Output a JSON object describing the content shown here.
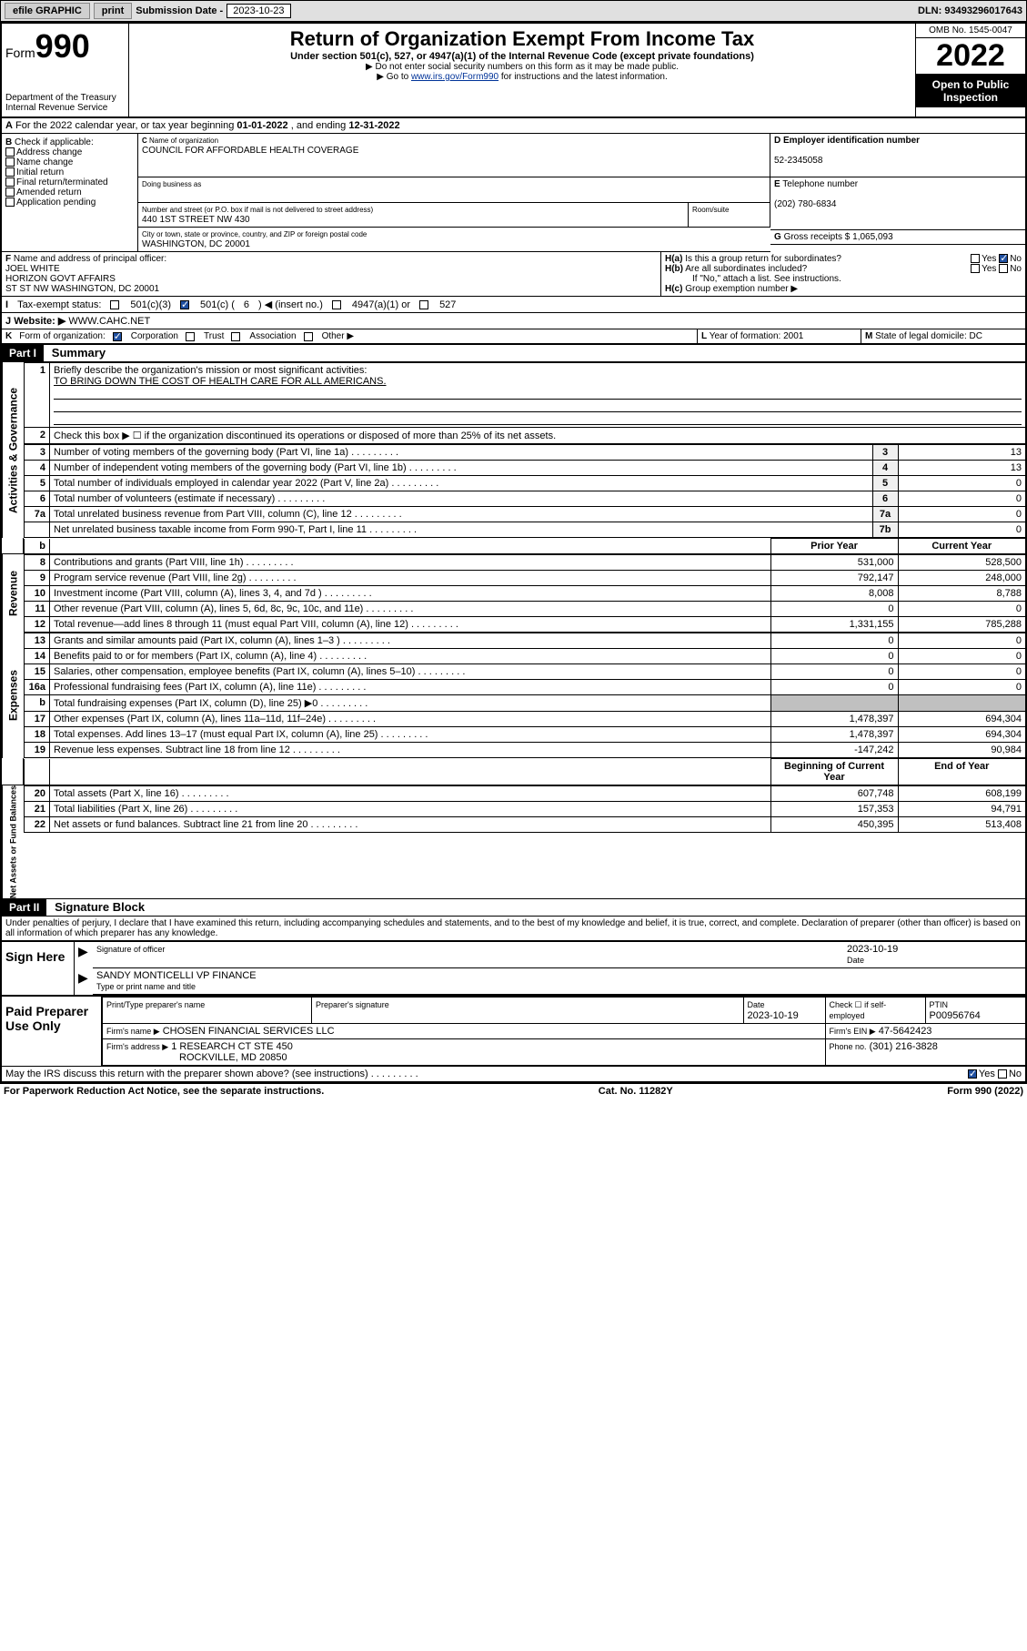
{
  "topbar": {
    "efile": "efile GRAPHIC",
    "print": "print",
    "sub_label": "Submission Date -",
    "sub_date": "2023-10-23",
    "dln_label": "DLN:",
    "dln": "93493296017643"
  },
  "header": {
    "form_label": "Form",
    "form_num": "990",
    "dept1": "Department of the Treasury",
    "dept2": "Internal Revenue Service",
    "title": "Return of Organization Exempt From Income Tax",
    "sub1": "Under section 501(c), 527, or 4947(a)(1) of the Internal Revenue Code (except private foundations)",
    "sub2": "▶ Do not enter social security numbers on this form as it may be made public.",
    "sub3_pre": "▶ Go to ",
    "sub3_link": "www.irs.gov/Form990",
    "sub3_post": " for instructions and the latest information.",
    "omb": "OMB No. 1545-0047",
    "year": "2022",
    "open1": "Open to Public",
    "open2": "Inspection"
  },
  "lineA": {
    "label_a": "A",
    "text": "For the 2022 calendar year, or tax year beginning ",
    "begin": "01-01-2022",
    "mid": " , and ending ",
    "end": "12-31-2022"
  },
  "blockB": {
    "b": "B",
    "label": "Check if applicable:",
    "addr": "Address change",
    "name": "Name change",
    "init": "Initial return",
    "final": "Final return/terminated",
    "amend": "Amended return",
    "app": "Application pending"
  },
  "blockC": {
    "c": "C",
    "name_lbl": "Name of organization",
    "name": "COUNCIL FOR AFFORDABLE HEALTH COVERAGE",
    "dba_lbl": "Doing business as",
    "street_lbl": "Number and street (or P.O. box if mail is not delivered to street address)",
    "room_lbl": "Room/suite",
    "street": "440 1ST STREET NW 430",
    "city_lbl": "City or town, state or province, country, and ZIP or foreign postal code",
    "city": "WASHINGTON, DC  20001"
  },
  "blockD": {
    "d": "D",
    "ein_lbl": "Employer identification number",
    "ein": "52-2345058"
  },
  "blockE": {
    "e": "E",
    "tel_lbl": "Telephone number",
    "tel": "(202) 780-6834"
  },
  "blockG": {
    "g": "G",
    "gross_lbl": "Gross receipts $",
    "gross": "1,065,093"
  },
  "blockF": {
    "f": "F",
    "lbl": "Name and address of principal officer:",
    "l1": "JOEL WHITE",
    "l2": "HORIZON GOVT AFFAIRS",
    "l3": "ST ST NW WASHINGTON, DC  20001"
  },
  "blockH": {
    "ha_lbl": "Is this a group return for subordinates?",
    "hb_lbl": "Are all subordinates included?",
    "hb_note": "If \"No,\" attach a list. See instructions.",
    "hc_lbl": "Group exemption number ▶",
    "yes": "Yes",
    "no": "No"
  },
  "lineI": {
    "i": "I",
    "lbl": "Tax-exempt status:",
    "c3": "501(c)(3)",
    "c_pre": "501(c) (",
    "c_num": "6",
    "c_post": ") ◀ (insert no.)",
    "a4947": "4947(a)(1) or",
    "s527": "527"
  },
  "lineJ": {
    "j": "J",
    "lbl": "Website: ▶",
    "val": "WWW.CAHC.NET"
  },
  "lineK": {
    "k": "K",
    "lbl": "Form of organization:",
    "corp": "Corporation",
    "trust": "Trust",
    "assoc": "Association",
    "other": "Other ▶"
  },
  "lineL": {
    "l": "L",
    "lbl": "Year of formation:",
    "val": "2001"
  },
  "lineM": {
    "m": "M",
    "lbl": "State of legal domicile:",
    "val": "DC"
  },
  "part1": {
    "num": "Part I",
    "title": "Summary",
    "vlabels": {
      "ag": "Activities & Governance",
      "rev": "Revenue",
      "exp": "Expenses",
      "nafb": "Net Assets or Fund Balances"
    },
    "q1_lbl": "Briefly describe the organization's mission or most significant activities:",
    "q1_val": "TO BRING DOWN THE COST OF HEALTH CARE FOR ALL AMERICANS.",
    "q2": "Check this box ▶ ☐ if the organization discontinued its operations or disposed of more than 25% of its net assets.",
    "rows_ag": [
      {
        "n": "3",
        "t": "Number of voting members of the governing body (Part VI, line 1a)",
        "c": "3",
        "v": "13"
      },
      {
        "n": "4",
        "t": "Number of independent voting members of the governing body (Part VI, line 1b)",
        "c": "4",
        "v": "13"
      },
      {
        "n": "5",
        "t": "Total number of individuals employed in calendar year 2022 (Part V, line 2a)",
        "c": "5",
        "v": "0"
      },
      {
        "n": "6",
        "t": "Total number of volunteers (estimate if necessary)",
        "c": "6",
        "v": "0"
      },
      {
        "n": "7a",
        "t": "Total unrelated business revenue from Part VIII, column (C), line 12",
        "c": "7a",
        "v": "0"
      },
      {
        "n": "",
        "t": "Net unrelated business taxable income from Form 990-T, Part I, line 11",
        "c": "7b",
        "v": "0"
      }
    ],
    "col_hdr_prior": "Prior Year",
    "col_hdr_curr": "Current Year",
    "rows_rev": [
      {
        "n": "8",
        "t": "Contributions and grants (Part VIII, line 1h)",
        "p": "531,000",
        "c": "528,500"
      },
      {
        "n": "9",
        "t": "Program service revenue (Part VIII, line 2g)",
        "p": "792,147",
        "c": "248,000"
      },
      {
        "n": "10",
        "t": "Investment income (Part VIII, column (A), lines 3, 4, and 7d )",
        "p": "8,008",
        "c": "8,788"
      },
      {
        "n": "11",
        "t": "Other revenue (Part VIII, column (A), lines 5, 6d, 8c, 9c, 10c, and 11e)",
        "p": "0",
        "c": "0"
      },
      {
        "n": "12",
        "t": "Total revenue—add lines 8 through 11 (must equal Part VIII, column (A), line 12)",
        "p": "1,331,155",
        "c": "785,288"
      }
    ],
    "rows_exp": [
      {
        "n": "13",
        "t": "Grants and similar amounts paid (Part IX, column (A), lines 1–3 )",
        "p": "0",
        "c": "0"
      },
      {
        "n": "14",
        "t": "Benefits paid to or for members (Part IX, column (A), line 4)",
        "p": "0",
        "c": "0"
      },
      {
        "n": "15",
        "t": "Salaries, other compensation, employee benefits (Part IX, column (A), lines 5–10)",
        "p": "0",
        "c": "0"
      },
      {
        "n": "16a",
        "t": "Professional fundraising fees (Part IX, column (A), line 11e)",
        "p": "0",
        "c": "0"
      },
      {
        "n": "b",
        "t": "Total fundraising expenses (Part IX, column (D), line 25) ▶0",
        "p": "",
        "c": "",
        "shade": true
      },
      {
        "n": "17",
        "t": "Other expenses (Part IX, column (A), lines 11a–11d, 11f–24e)",
        "p": "1,478,397",
        "c": "694,304"
      },
      {
        "n": "18",
        "t": "Total expenses. Add lines 13–17 (must equal Part IX, column (A), line 25)",
        "p": "1,478,397",
        "c": "694,304"
      },
      {
        "n": "19",
        "t": "Revenue less expenses. Subtract line 18 from line 12",
        "p": "-147,242",
        "c": "90,984"
      }
    ],
    "col_hdr_begin": "Beginning of Current Year",
    "col_hdr_end": "End of Year",
    "rows_na": [
      {
        "n": "20",
        "t": "Total assets (Part X, line 16)",
        "p": "607,748",
        "c": "608,199"
      },
      {
        "n": "21",
        "t": "Total liabilities (Part X, line 26)",
        "p": "157,353",
        "c": "94,791"
      },
      {
        "n": "22",
        "t": "Net assets or fund balances. Subtract line 21 from line 20",
        "p": "450,395",
        "c": "513,408"
      }
    ]
  },
  "part2": {
    "num": "Part II",
    "title": "Signature Block",
    "decl": "Under penalties of perjury, I declare that I have examined this return, including accompanying schedules and statements, and to the best of my knowledge and belief, it is true, correct, and complete. Declaration of preparer (other than officer) is based on all information of which preparer has any knowledge."
  },
  "sign": {
    "here": "Sign Here",
    "sig_lbl": "Signature of officer",
    "date_lbl": "Date",
    "date": "2023-10-19",
    "name": "SANDY MONTICELLI VP FINANCE",
    "name_lbl": "Type or print name and title"
  },
  "paid": {
    "title": "Paid Preparer Use Only",
    "prep_name_lbl": "Print/Type preparer's name",
    "prep_sig_lbl": "Preparer's signature",
    "date_lbl": "Date",
    "date": "2023-10-19",
    "check_lbl": "Check ☐ if self-employed",
    "ptin_lbl": "PTIN",
    "ptin": "P00956764",
    "firm_name_lbl": "Firm's name ▶",
    "firm_name": "CHOSEN FINANCIAL SERVICES LLC",
    "firm_ein_lbl": "Firm's EIN ▶",
    "firm_ein": "47-5642423",
    "firm_addr_lbl": "Firm's address ▶",
    "firm_addr1": "1 RESEARCH CT STE 450",
    "firm_addr2": "ROCKVILLE, MD  20850",
    "phone_lbl": "Phone no.",
    "phone": "(301) 216-3828"
  },
  "discuss": {
    "q": "May the IRS discuss this return with the preparer shown above? (see instructions)",
    "yes": "Yes",
    "no": "No"
  },
  "footer": {
    "pra": "For Paperwork Reduction Act Notice, see the separate instructions.",
    "cat": "Cat. No. 11282Y",
    "form": "Form 990 (2022)"
  }
}
